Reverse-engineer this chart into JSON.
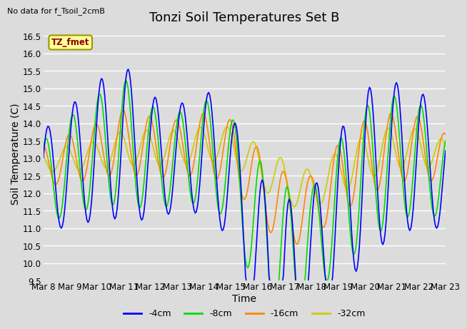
{
  "title": "Tonzi Soil Temperatures Set B",
  "xlabel": "Time",
  "ylabel": "Soil Temperature (C)",
  "no_data_label": "No data for f_Tsoil_2cmB",
  "annotation_label": "TZ_fmet",
  "ylim": [
    9.5,
    16.75
  ],
  "xlim": [
    0,
    360
  ],
  "x_tick_labels": [
    "Mar 8",
    "Mar 9",
    "Mar 10",
    "Mar 11",
    "Mar 12",
    "Mar 13",
    "Mar 14",
    "Mar 15",
    "Mar 16",
    "Mar 17",
    "Mar 18",
    "Mar 19",
    "Mar 20",
    "Mar 21",
    "Mar 22",
    "Mar 23"
  ],
  "x_tick_positions": [
    0,
    24,
    48,
    72,
    96,
    120,
    144,
    168,
    192,
    216,
    240,
    264,
    288,
    312,
    336,
    360
  ],
  "colors": {
    "4cm": "#0000ff",
    "8cm": "#00dd00",
    "16cm": "#ff8800",
    "32cm": "#cccc00"
  },
  "legend_labels": [
    "-4cm",
    "-8cm",
    "-16cm",
    "-32cm"
  ],
  "bg_color": "#dcdcdc",
  "plot_bg_color": "#dcdcdc",
  "grid_color": "#ffffff",
  "title_fontsize": 13,
  "label_fontsize": 10,
  "tick_fontsize": 8.5
}
